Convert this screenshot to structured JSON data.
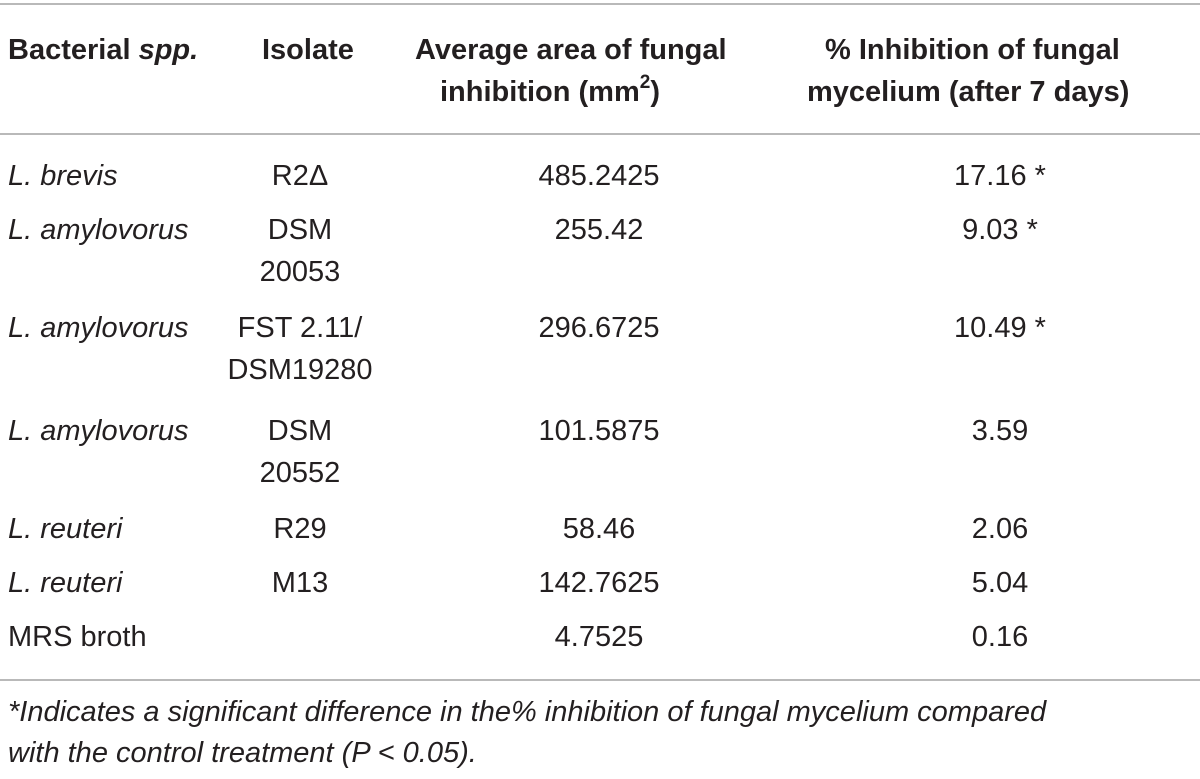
{
  "table": {
    "headers": {
      "col1_main": "Bacterial ",
      "col1_italic": "spp.",
      "col2": "Isolate",
      "col3_line1": "Average area of fungal",
      "col3_line2": "inhibition (mm",
      "col3_sup": "2",
      "col3_end": ")",
      "col4_line1": "% Inhibition of fungal",
      "col4_line2": "mycelium (after 7 days)"
    },
    "rows": [
      {
        "species": "L. brevis",
        "isolate_1": "R2Δ",
        "isolate_2": "",
        "area": "485.2425",
        "inhibition": "17.16 *"
      },
      {
        "species": "L. amylovorus",
        "isolate_1": "DSM",
        "isolate_2": "20053",
        "area": "255.42",
        "inhibition": "9.03 *"
      },
      {
        "species": "L. amylovorus",
        "isolate_1": "FST 2.11/",
        "isolate_2": "DSM19280",
        "area": "296.6725",
        "inhibition": "10.49 *"
      },
      {
        "species": "L. amylovorus",
        "isolate_1": "DSM",
        "isolate_2": "20552",
        "area": "101.5875",
        "inhibition": "3.59"
      },
      {
        "species": "L. reuteri",
        "isolate_1": "R29",
        "isolate_2": "",
        "area": "58.46",
        "inhibition": "2.06"
      },
      {
        "species": "L. reuteri",
        "isolate_1": "M13",
        "isolate_2": "",
        "area": "142.7625",
        "inhibition": "5.04"
      },
      {
        "species": "MRS broth",
        "isolate_1": "",
        "isolate_2": "",
        "area": "4.7525",
        "inhibition": "0.16"
      }
    ]
  },
  "footnote": {
    "line1": "*Indicates a significant difference in the% inhibition of fungal mycelium compared",
    "line2": "with the control treatment (P < 0.05)."
  }
}
